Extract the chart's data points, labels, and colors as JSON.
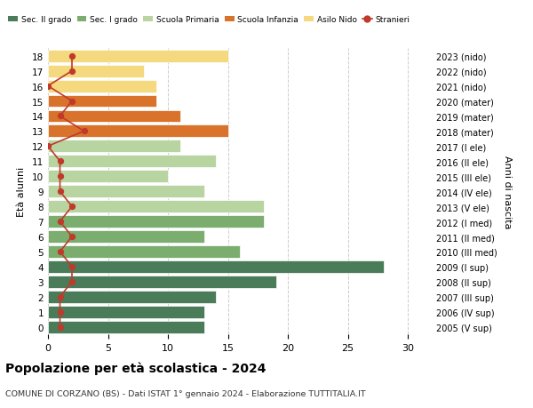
{
  "ages": [
    18,
    17,
    16,
    15,
    14,
    13,
    12,
    11,
    10,
    9,
    8,
    7,
    6,
    5,
    4,
    3,
    2,
    1,
    0
  ],
  "years": [
    "2005 (V sup)",
    "2006 (IV sup)",
    "2007 (III sup)",
    "2008 (II sup)",
    "2009 (I sup)",
    "2010 (III med)",
    "2011 (II med)",
    "2012 (I med)",
    "2013 (V ele)",
    "2014 (IV ele)",
    "2015 (III ele)",
    "2016 (II ele)",
    "2017 (I ele)",
    "2018 (mater)",
    "2019 (mater)",
    "2020 (mater)",
    "2021 (nido)",
    "2022 (nido)",
    "2023 (nido)"
  ],
  "bar_values": [
    13,
    13,
    14,
    19,
    28,
    16,
    13,
    18,
    18,
    13,
    10,
    14,
    11,
    15,
    11,
    9,
    9,
    8,
    15
  ],
  "bar_colors": [
    "#4a7c59",
    "#4a7c59",
    "#4a7c59",
    "#4a7c59",
    "#4a7c59",
    "#7aad6e",
    "#7aad6e",
    "#7aad6e",
    "#b8d4a0",
    "#b8d4a0",
    "#b8d4a0",
    "#b8d4a0",
    "#b8d4a0",
    "#d9722a",
    "#d9722a",
    "#d9722a",
    "#f5d97e",
    "#f5d97e",
    "#f5d97e"
  ],
  "stranieri_values": [
    1,
    1,
    1,
    2,
    2,
    1,
    2,
    1,
    2,
    1,
    1,
    1,
    0,
    3,
    1,
    2,
    0,
    2,
    2
  ],
  "legend_labels": [
    "Sec. II grado",
    "Sec. I grado",
    "Scuola Primaria",
    "Scuola Infanzia",
    "Asilo Nido",
    "Stranieri"
  ],
  "legend_colors": [
    "#4a7c59",
    "#7aad6e",
    "#b8d4a0",
    "#d9722a",
    "#f5d97e",
    "#c0392b"
  ],
  "ylabel_left": "Età alunni",
  "ylabel_right": "Anni di nascita",
  "xlim": [
    0,
    32
  ],
  "xticks": [
    0,
    5,
    10,
    15,
    20,
    25,
    30
  ],
  "title": "Popolazione per età scolastica - 2024",
  "subtitle": "COMUNE DI CORZANO (BS) - Dati ISTAT 1° gennaio 2024 - Elaborazione TUTTITALIA.IT",
  "stranieri_color": "#c0392b",
  "grid_color": "#cccccc"
}
